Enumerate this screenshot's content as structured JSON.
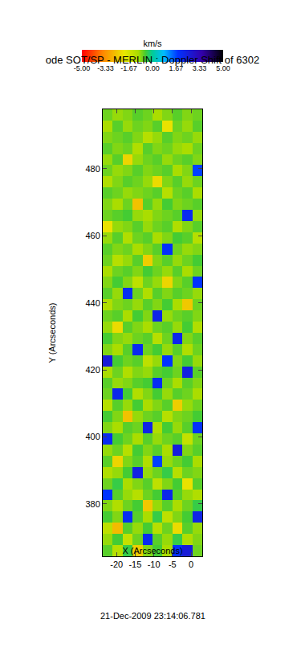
{
  "chart_data": {
    "type": "heatmap",
    "title": "ode SOT/SP - MERLIN : Doppler Shift of 6302",
    "x_label": "X (Arcseconds)",
    "y_label": "Y (Arcseconds)",
    "annotations": [
      "21-Dec-2009 23:14:06.781"
    ],
    "xlim": [
      -23.7,
      3
    ],
    "ylim": [
      364.4,
      497.7
    ],
    "xticks": [
      -20,
      -15,
      -10,
      -5,
      0
    ],
    "yticks": [
      380,
      400,
      420,
      440,
      460,
      480
    ],
    "colorbar": {
      "title": "km/s",
      "range": [
        -5,
        5
      ],
      "ticks": [
        {
          "value": -5,
          "label": "-5.00"
        },
        {
          "value": -3.33,
          "label": "-3.33"
        },
        {
          "value": -1.67,
          "label": "-1.67"
        },
        {
          "value": 0,
          "label": "0.00"
        },
        {
          "value": 1.67,
          "label": "1.67"
        },
        {
          "value": 3.33,
          "label": "3.33"
        },
        {
          "value": 5,
          "label": "5.00"
        }
      ]
    },
    "x": [
      -22.37,
      -19.7,
      -17.03,
      -14.36,
      -11.69,
      -9.02,
      -6.35,
      -3.68,
      -1.01,
      1.66
    ],
    "y": [
      366.07,
      369.4,
      372.73,
      376.07,
      379.4,
      382.73,
      386.07,
      389.4,
      392.73,
      396.06,
      399.4,
      402.73,
      406.06,
      409.4,
      412.73,
      416.06,
      419.39,
      422.73,
      426.06,
      429.39,
      432.73,
      436.06,
      439.39,
      442.72,
      446.06,
      449.39,
      452.72,
      456.06,
      459.39,
      462.72,
      466.05,
      469.39,
      472.72,
      476.05,
      479.39,
      482.72,
      486.05,
      489.38,
      492.72,
      496.05
    ],
    "cells": [
      [
        -0.6,
        -1.2,
        -0.4,
        -2.4,
        -0.8,
        -0.5,
        -1.0,
        1.9,
        2.6,
        -0.7
      ],
      [
        -0.9,
        -0.5,
        -1.4,
        -0.7,
        2.1,
        -0.6,
        -0.9,
        -0.4,
        -1.1,
        -0.8
      ],
      [
        -1.3,
        -2.7,
        -0.6,
        -0.9,
        -0.5,
        -1.2,
        -0.7,
        -2.2,
        -0.6,
        -0.9
      ],
      [
        -0.5,
        -0.8,
        2.0,
        -0.6,
        -1.0,
        -0.4,
        -1.3,
        -0.8,
        -0.5,
        2.3
      ],
      [
        -0.8,
        -1.1,
        -0.7,
        -0.5,
        -2.5,
        -0.9,
        -0.6,
        -1.0,
        -0.7,
        -0.4
      ],
      [
        1.8,
        -0.6,
        -0.9,
        -1.2,
        -0.7,
        -0.5,
        2.2,
        -0.6,
        -0.9,
        -1.1
      ],
      [
        -0.7,
        -0.4,
        -1.0,
        -0.8,
        -0.6,
        -1.3,
        -0.8,
        -0.5,
        -2.1,
        -0.6
      ],
      [
        -1.1,
        -0.9,
        -0.5,
        2.4,
        -0.9,
        -0.7,
        -0.4,
        -1.2,
        -0.7,
        -0.8
      ],
      [
        -0.6,
        -2.3,
        -0.8,
        -0.6,
        -1.1,
        1.7,
        -0.9,
        -0.7,
        -0.5,
        -1.0
      ],
      [
        -0.9,
        -0.7,
        -1.2,
        -0.5,
        -0.8,
        -0.6,
        -1.0,
        2.5,
        -0.8,
        -0.6
      ],
      [
        2.1,
        -0.5,
        -0.7,
        -1.0,
        -0.6,
        -0.9,
        -0.7,
        -0.6,
        -1.4,
        -0.7
      ],
      [
        -0.8,
        -1.0,
        -0.6,
        -0.7,
        2.3,
        -1.1,
        -0.5,
        -0.9,
        -0.6,
        1.9
      ],
      [
        -0.5,
        -0.8,
        -2.6,
        -0.9,
        -0.7,
        -0.6,
        -1.2,
        -0.8,
        -0.7,
        -0.5
      ],
      [
        -1.2,
        -0.6,
        -0.9,
        -0.5,
        -1.0,
        -0.8,
        -0.6,
        -2.4,
        -0.9,
        -0.7
      ],
      [
        -0.7,
        2.2,
        -0.5,
        -1.1,
        -0.8,
        -0.5,
        -0.9,
        -0.6,
        -0.7,
        -1.0
      ],
      [
        -0.6,
        -0.9,
        -0.8,
        -0.6,
        -0.5,
        2.0,
        -0.7,
        -1.0,
        -0.6,
        -0.8
      ],
      [
        -1.0,
        -0.7,
        -1.1,
        -0.8,
        -0.9,
        -0.6,
        -0.5,
        -0.7,
        2.4,
        -0.6
      ],
      [
        2.6,
        -0.5,
        -0.7,
        -0.6,
        -1.3,
        -0.9,
        1.8,
        -0.8,
        -0.5,
        -0.9
      ],
      [
        -0.8,
        -1.0,
        -0.6,
        2.1,
        -0.7,
        -0.5,
        -0.9,
        -0.6,
        -1.1,
        -0.7
      ],
      [
        -0.5,
        -0.8,
        -0.9,
        -0.7,
        -0.6,
        -1.2,
        -0.7,
        2.2,
        -0.8,
        -0.6
      ],
      [
        -0.9,
        -2.2,
        -0.6,
        -0.8,
        -1.0,
        -0.7,
        -0.6,
        -0.9,
        -0.5,
        -1.1
      ],
      [
        -0.7,
        -0.6,
        -1.0,
        -0.5,
        -0.8,
        2.3,
        -0.9,
        -0.7,
        -0.6,
        -0.8
      ],
      [
        -1.1,
        -0.8,
        -0.7,
        -0.9,
        -0.6,
        -0.8,
        -0.5,
        -1.0,
        -2.5,
        -0.7
      ],
      [
        -0.6,
        -0.9,
        2.0,
        -0.7,
        -1.1,
        -0.6,
        -0.8,
        -0.6,
        -0.7,
        -0.9
      ],
      [
        -0.8,
        -0.5,
        -0.8,
        -1.3,
        -0.7,
        -0.9,
        -2.3,
        -0.8,
        -0.6,
        1.8
      ],
      [
        -1.0,
        -0.7,
        -0.6,
        -0.8,
        -0.5,
        -0.7,
        -0.9,
        -0.6,
        -1.0,
        -0.7
      ],
      [
        -0.7,
        -1.2,
        -0.9,
        -0.6,
        -2.4,
        -0.8,
        -0.6,
        -0.9,
        -0.7,
        -0.5
      ],
      [
        -0.6,
        -0.8,
        -0.7,
        -1.0,
        -0.8,
        -0.6,
        1.9,
        -0.7,
        -0.9,
        -0.8
      ],
      [
        -0.9,
        -0.6,
        -1.1,
        -0.7,
        -0.6,
        -1.0,
        -0.8,
        -0.5,
        -0.6,
        -1.2
      ],
      [
        -2.1,
        -0.9,
        -0.8,
        -0.6,
        -0.9,
        -0.7,
        -0.6,
        -1.1,
        -0.8,
        -0.6
      ],
      [
        -0.7,
        -0.6,
        -0.5,
        -0.9,
        -1.0,
        -0.8,
        -0.7,
        -0.6,
        2.1,
        -0.9
      ],
      [
        -0.8,
        -1.0,
        -0.7,
        -2.6,
        -0.6,
        -0.9,
        -0.5,
        -0.8,
        -0.7,
        -0.6
      ],
      [
        -0.6,
        -0.7,
        -0.9,
        -0.8,
        -0.7,
        -0.6,
        -1.2,
        -0.7,
        -0.6,
        -1.0
      ],
      [
        -1.1,
        -0.8,
        -0.6,
        -0.7,
        -0.9,
        -2.2,
        -0.8,
        -0.6,
        -0.9,
        -0.7
      ],
      [
        -0.7,
        -0.9,
        -0.8,
        -0.6,
        -0.8,
        -0.7,
        -0.6,
        -1.0,
        -0.8,
        1.7
      ],
      [
        -0.9,
        -0.6,
        -2.3,
        -0.9,
        -0.7,
        -0.6,
        -0.9,
        -0.7,
        -0.6,
        -0.8
      ],
      [
        -0.6,
        -0.8,
        -0.7,
        -1.1,
        -0.6,
        -0.8,
        -0.7,
        -0.9,
        -1.0,
        -0.7
      ],
      [
        -0.8,
        -0.7,
        -0.6,
        -0.8,
        -1.2,
        -0.9,
        -0.6,
        -0.8,
        -0.7,
        -0.9
      ],
      [
        -1.0,
        -0.6,
        -0.9,
        -0.7,
        -0.8,
        -0.6,
        -2.1,
        -0.7,
        -0.9,
        -0.6
      ],
      [
        -0.7,
        -0.9,
        -0.8,
        -0.6,
        -0.7,
        -1.0,
        -0.8,
        -0.6,
        -0.8,
        -0.7
      ]
    ]
  }
}
